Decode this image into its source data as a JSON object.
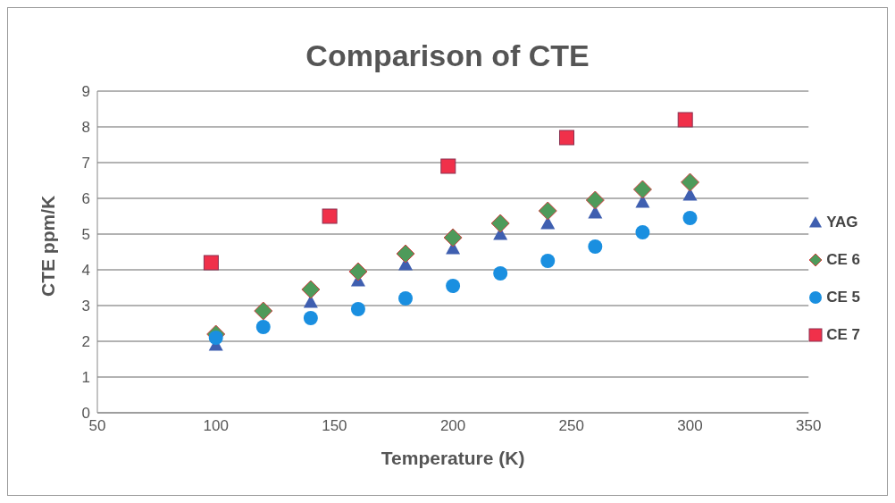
{
  "chart_data": {
    "type": "scatter",
    "title": "Comparison of CTE",
    "xlabel": "Temperature (K)",
    "ylabel": "CTE ppm/K",
    "xlim": [
      50,
      350
    ],
    "xticks": [
      50,
      100,
      150,
      200,
      250,
      300,
      350
    ],
    "ylim": [
      0,
      9
    ],
    "yticks": [
      0,
      1,
      2,
      3,
      4,
      5,
      6,
      7,
      8,
      9
    ],
    "grid": "y",
    "legend": "right",
    "series": [
      {
        "name": "YAG",
        "color": "#3f5fb0",
        "marker": "triangle",
        "x": [
          100,
          120,
          140,
          160,
          180,
          200,
          220,
          240,
          260,
          280,
          300
        ],
        "values": [
          1.9,
          null,
          3.1,
          3.7,
          4.15,
          4.6,
          5.0,
          5.3,
          5.6,
          5.9,
          6.1
        ]
      },
      {
        "name": "CE 6",
        "color": "#4e9a5a",
        "marker": "diamond",
        "x": [
          100,
          120,
          140,
          160,
          180,
          200,
          220,
          240,
          260,
          280,
          300
        ],
        "values": [
          2.2,
          2.85,
          3.45,
          3.95,
          4.45,
          4.9,
          5.3,
          5.65,
          5.95,
          6.25,
          6.45
        ]
      },
      {
        "name": "CE 5",
        "color": "#1a8fe0",
        "marker": "circle",
        "x": [
          100,
          120,
          140,
          160,
          180,
          200,
          220,
          240,
          260,
          280,
          300
        ],
        "values": [
          2.1,
          2.4,
          2.65,
          2.9,
          3.2,
          3.55,
          3.9,
          4.25,
          4.65,
          5.05,
          5.45
        ]
      },
      {
        "name": "CE 7",
        "color": "#f0304a",
        "marker": "square",
        "x": [
          98,
          148,
          198,
          248,
          298
        ],
        "values": [
          4.2,
          5.5,
          6.9,
          7.7,
          8.2
        ]
      }
    ]
  }
}
